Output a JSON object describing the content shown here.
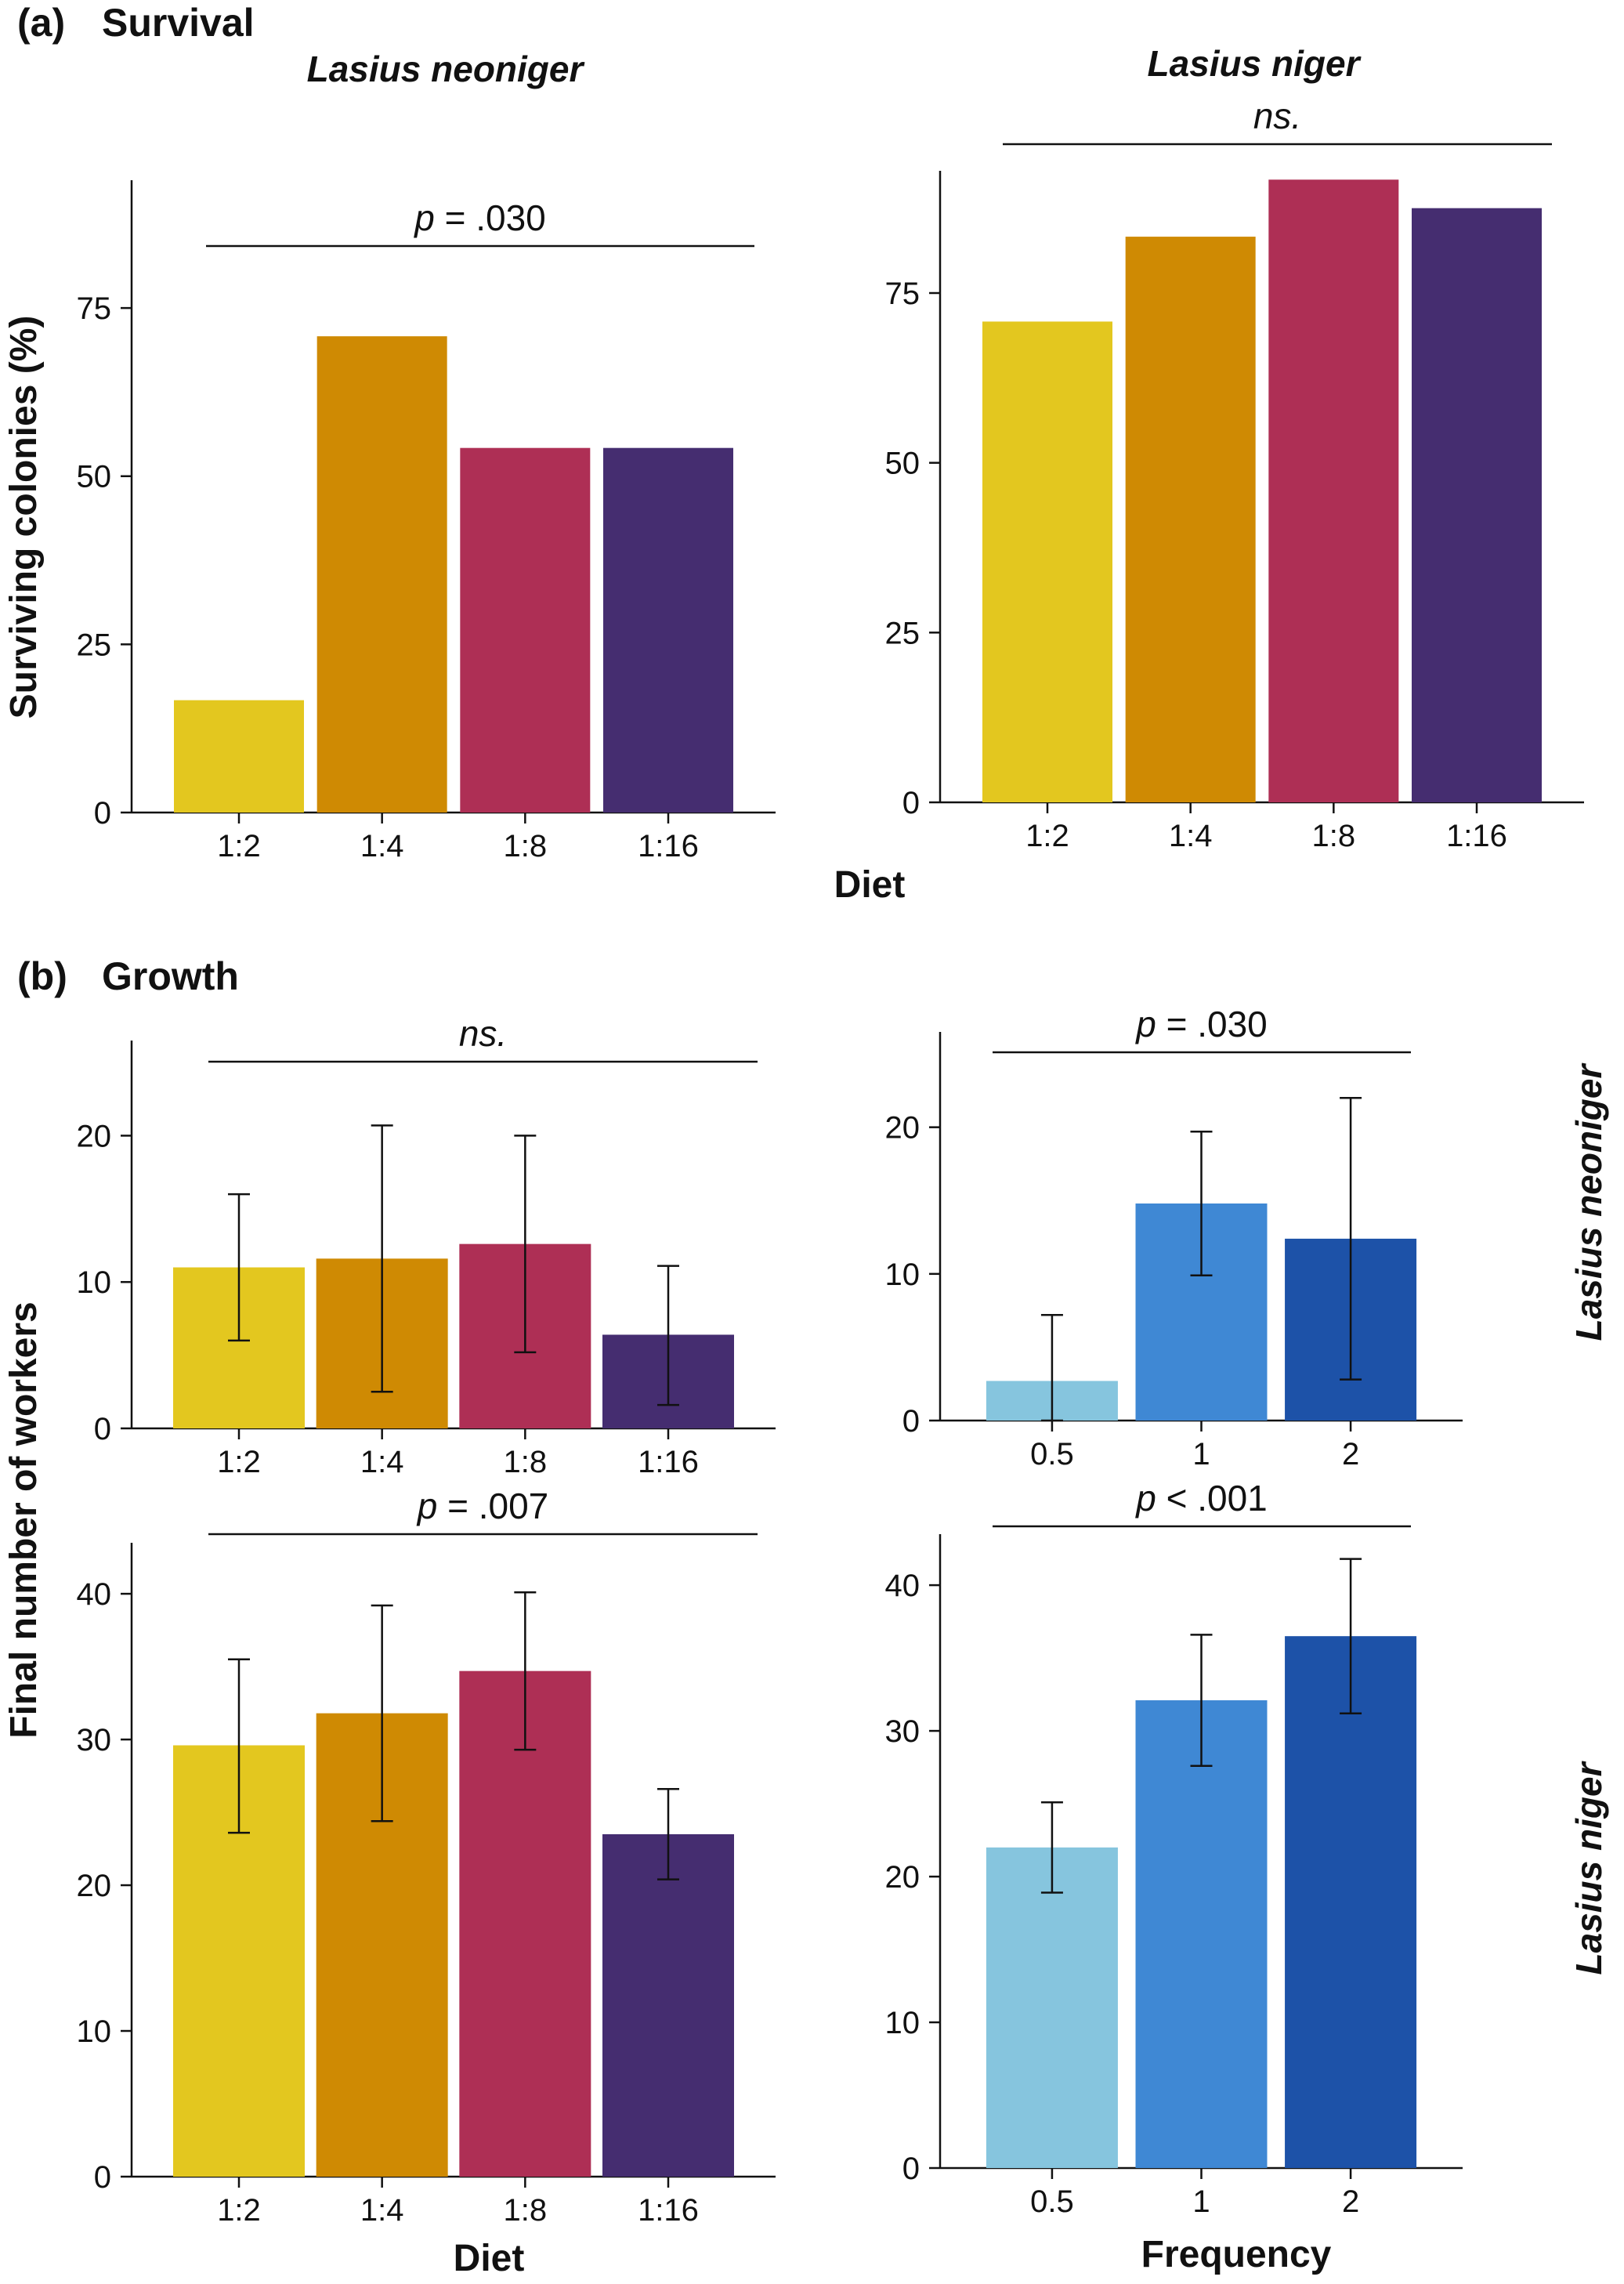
{
  "figure": {
    "section_a": {
      "letter": "(a)",
      "title": "Survival"
    },
    "section_b": {
      "letter": "(b)",
      "title": "Growth"
    },
    "species": {
      "neoniger": "Lasius neoniger",
      "niger": "Lasius niger"
    },
    "axis_titles": {
      "survival_y": "Surviving colonies (%)",
      "growth_y": "Final number of workers",
      "diet": "Diet",
      "frequency": "Frequency"
    }
  },
  "colors": {
    "diet": [
      "#e3c71f",
      "#cf8a03",
      "#ae2f55",
      "#452d70"
    ],
    "frequency": [
      "#86c5de",
      "#3f88d4",
      "#1d52a8"
    ]
  },
  "chart_data": [
    {
      "id": "survival-neoniger",
      "type": "bar",
      "categories": [
        "1:2",
        "1:4",
        "1:8",
        "1:16"
      ],
      "values": [
        16.7,
        70.8,
        54.2,
        54.2
      ],
      "ylim": [
        0,
        94
      ],
      "yticks": [
        0,
        25,
        50,
        75
      ],
      "significance": "p = .030",
      "palette": "diet"
    },
    {
      "id": "survival-niger",
      "type": "bar",
      "categories": [
        "1:2",
        "1:4",
        "1:8",
        "1:16"
      ],
      "values": [
        70.8,
        83.3,
        91.7,
        87.5
      ],
      "ylim": [
        0,
        93
      ],
      "yticks": [
        0,
        25,
        50,
        75
      ],
      "significance": "ns.",
      "palette": "diet"
    },
    {
      "id": "growth-diet-neoniger",
      "type": "bar",
      "categories": [
        "1:2",
        "1:4",
        "1:8",
        "1:16"
      ],
      "values": [
        11.0,
        11.6,
        12.6,
        6.4
      ],
      "error_low": [
        6.0,
        2.5,
        5.2,
        1.6
      ],
      "error_high": [
        16.0,
        20.7,
        20.0,
        11.1
      ],
      "ylim": [
        0,
        26.5
      ],
      "yticks": [
        0,
        10,
        20
      ],
      "significance": "ns.",
      "palette": "diet"
    },
    {
      "id": "growth-frequency-neoniger",
      "type": "bar",
      "categories": [
        "0.5",
        "1",
        "2"
      ],
      "values": [
        2.7,
        14.8,
        12.4
      ],
      "error_low": [
        0.0,
        9.9,
        2.8
      ],
      "error_high": [
        7.2,
        19.7,
        22.0
      ],
      "ylim": [
        0,
        26.5
      ],
      "yticks": [
        0,
        10,
        20
      ],
      "significance": "p = .030",
      "palette": "frequency"
    },
    {
      "id": "growth-diet-niger",
      "type": "bar",
      "categories": [
        "1:2",
        "1:4",
        "1:8",
        "1:16"
      ],
      "values": [
        29.6,
        31.8,
        34.7,
        23.5
      ],
      "error_low": [
        23.6,
        24.4,
        29.3,
        20.4
      ],
      "error_high": [
        35.5,
        39.2,
        40.1,
        26.6
      ],
      "ylim": [
        0,
        43.5
      ],
      "yticks": [
        0,
        10,
        20,
        30,
        40
      ],
      "significance": "p = .007",
      "palette": "diet"
    },
    {
      "id": "growth-frequency-niger",
      "type": "bar",
      "categories": [
        "0.5",
        "1",
        "2"
      ],
      "values": [
        22.0,
        32.1,
        36.5
      ],
      "error_low": [
        18.9,
        27.6,
        31.2
      ],
      "error_high": [
        25.1,
        36.6,
        41.8
      ],
      "ylim": [
        0,
        43.5
      ],
      "yticks": [
        0,
        10,
        20,
        30,
        40
      ],
      "significance": "p < .001",
      "palette": "frequency"
    }
  ]
}
